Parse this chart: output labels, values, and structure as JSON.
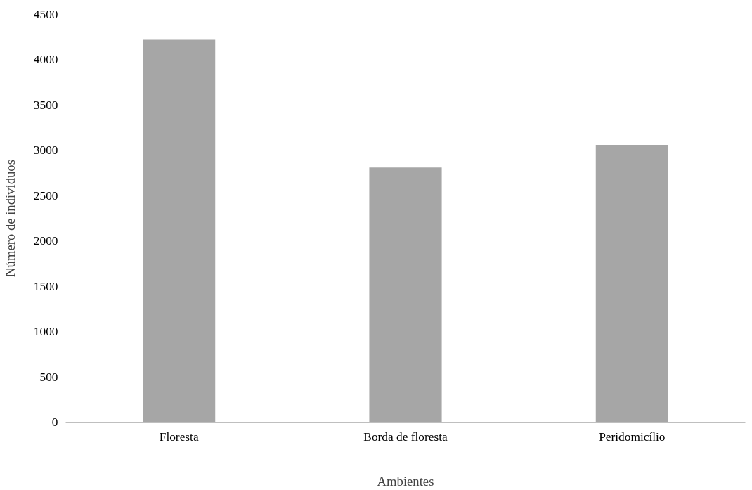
{
  "chart_data": {
    "type": "bar",
    "xlabel": "Ambientes",
    "ylabel": "Número de indivíduos",
    "categories": [
      "Floresta",
      "Borda de floresta",
      "Peridomicílio"
    ],
    "values": [
      4220,
      2810,
      3060
    ],
    "color": "#a6a6a6",
    "ylim": [
      0,
      4500
    ],
    "yticks": [
      0,
      500,
      1000,
      1500,
      2000,
      2500,
      3000,
      3500,
      4000,
      4500
    ],
    "grid": false
  }
}
